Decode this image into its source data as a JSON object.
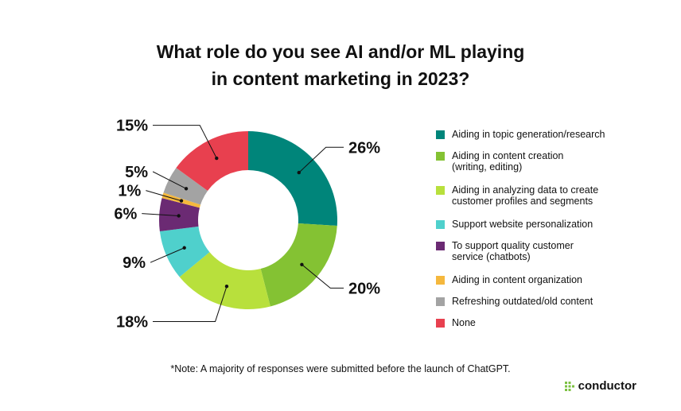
{
  "title_lines": [
    "What role do you see AI and/or ML playing",
    "in content marketing in 2023?"
  ],
  "note": "*Note: A majority of responses were submitted before the launch of ChatGPT.",
  "brand": {
    "name": "conductor",
    "color": "#7cc142"
  },
  "chart_data": {
    "type": "pie",
    "title": "What role do you see AI and/or ML playing in content marketing in 2023?",
    "donut": true,
    "legend_placement": "right",
    "slices": [
      {
        "label": "Aiding in topic generation/research",
        "value": 26,
        "display": "26%",
        "color": "#00857a"
      },
      {
        "label": "Aiding in content creation\n(writing, editing)",
        "value": 20,
        "display": "20%",
        "color": "#84c233"
      },
      {
        "label": "Aiding in analyzing data to create\ncustomer profiles and segments",
        "value": 18,
        "display": "18%",
        "color": "#b8e03c"
      },
      {
        "label": "Support website personalization",
        "value": 9,
        "display": "9%",
        "color": "#4fd0cc"
      },
      {
        "label": "To support quality customer\nservice (chatbots)",
        "value": 6,
        "display": "6%",
        "color": "#6b2a73"
      },
      {
        "label": "Aiding in content organization",
        "value": 1,
        "display": "1%",
        "color": "#f5b83d"
      },
      {
        "label": "Refreshing outdated/old content",
        "value": 5,
        "display": "5%",
        "color": "#a3a3a3"
      },
      {
        "label": "None",
        "value": 15,
        "display": "15%",
        "color": "#e8404f"
      }
    ]
  }
}
